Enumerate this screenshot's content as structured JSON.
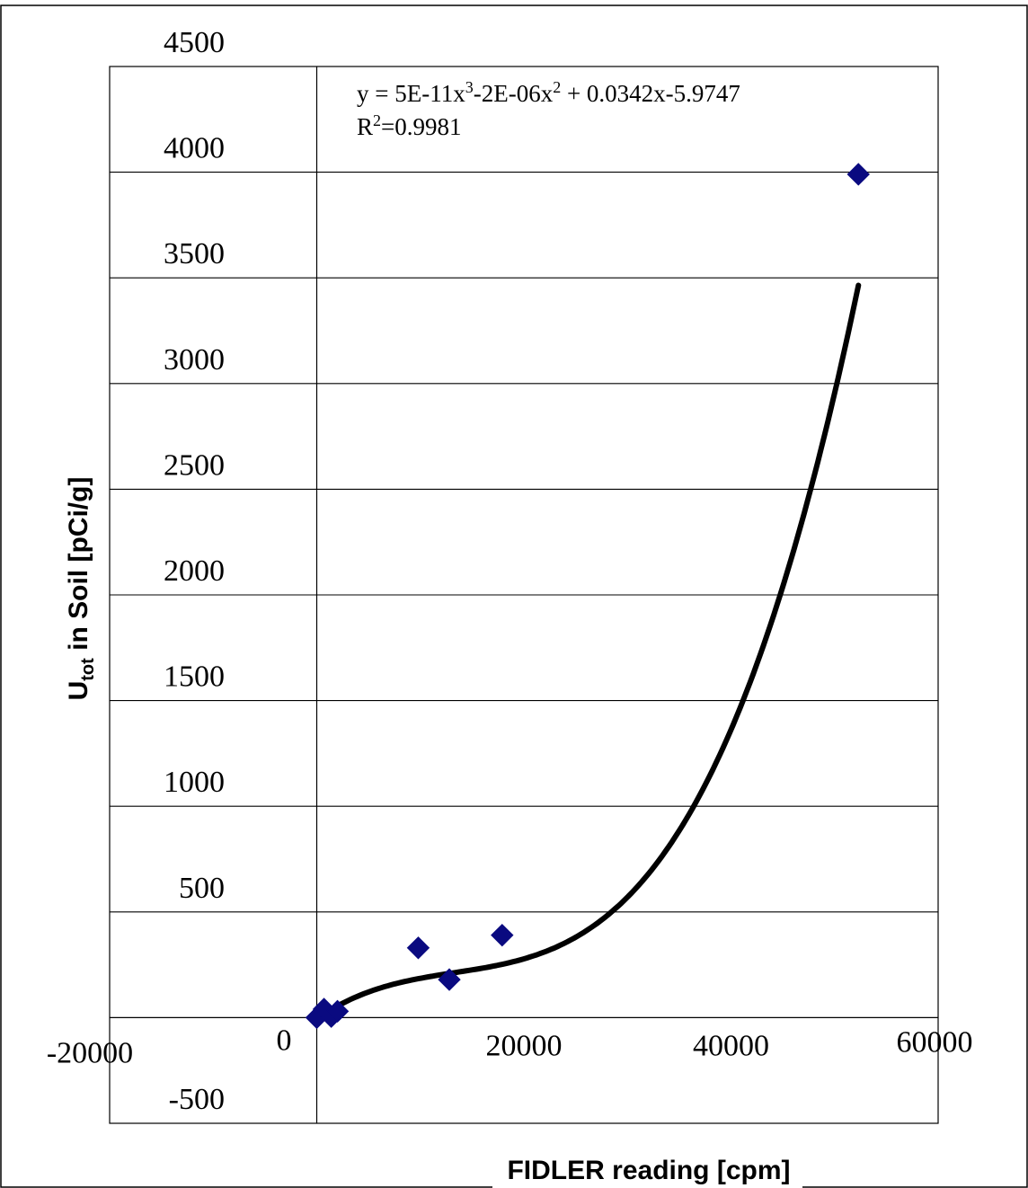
{
  "chart_data": {
    "type": "scatter",
    "xlabel": "FIDLER reading [cpm]",
    "ylabel": {
      "main": "U",
      "subscript": "tot",
      "rest": " in Soil [pCi/g]"
    },
    "xlim": [
      -20000,
      60000
    ],
    "ylim": [
      -500,
      4500
    ],
    "x_ticks": [
      -20000,
      0,
      20000,
      40000,
      60000
    ],
    "y_ticks": [
      -500,
      0,
      500,
      1000,
      1500,
      2000,
      2500,
      3000,
      3500,
      4000,
      4500
    ],
    "x_tick_labels": [
      "-20000",
      "0",
      "20000",
      "40000",
      "60000"
    ],
    "y_tick_labels": [
      "-500",
      "",
      "500",
      "1000",
      "1500",
      "2000",
      "2500",
      "3000",
      "3500",
      "4000",
      "4500"
    ],
    "grid": "horizontal",
    "series": [
      {
        "marker": "diamond",
        "color": "#0a0a80",
        "points": [
          {
            "x": 0,
            "y": 0
          },
          {
            "x": 700,
            "y": 40
          },
          {
            "x": 1400,
            "y": 5
          },
          {
            "x": 2000,
            "y": 30
          },
          {
            "x": 9800,
            "y": 330
          },
          {
            "x": 12800,
            "y": 180
          },
          {
            "x": 17900,
            "y": 390
          },
          {
            "x": 52300,
            "y": 3990
          }
        ]
      }
    ],
    "trendline": {
      "type": "polynomial",
      "color": "#000000",
      "coefficients": [
        -5.9747,
        0.0342,
        -2e-06,
        5e-11
      ],
      "x_range": [
        0,
        52300
      ],
      "equation": {
        "line1_prefix": "y = 5E-11x",
        "sup1": "3",
        "line1_mid": "-2E-06x",
        "sup2": "2",
        "line1_suffix": " + 0.0342x-5.9747",
        "r2_prefix": "R",
        "r2_sup": "2",
        "r2_suffix": "=0.9981"
      }
    }
  }
}
